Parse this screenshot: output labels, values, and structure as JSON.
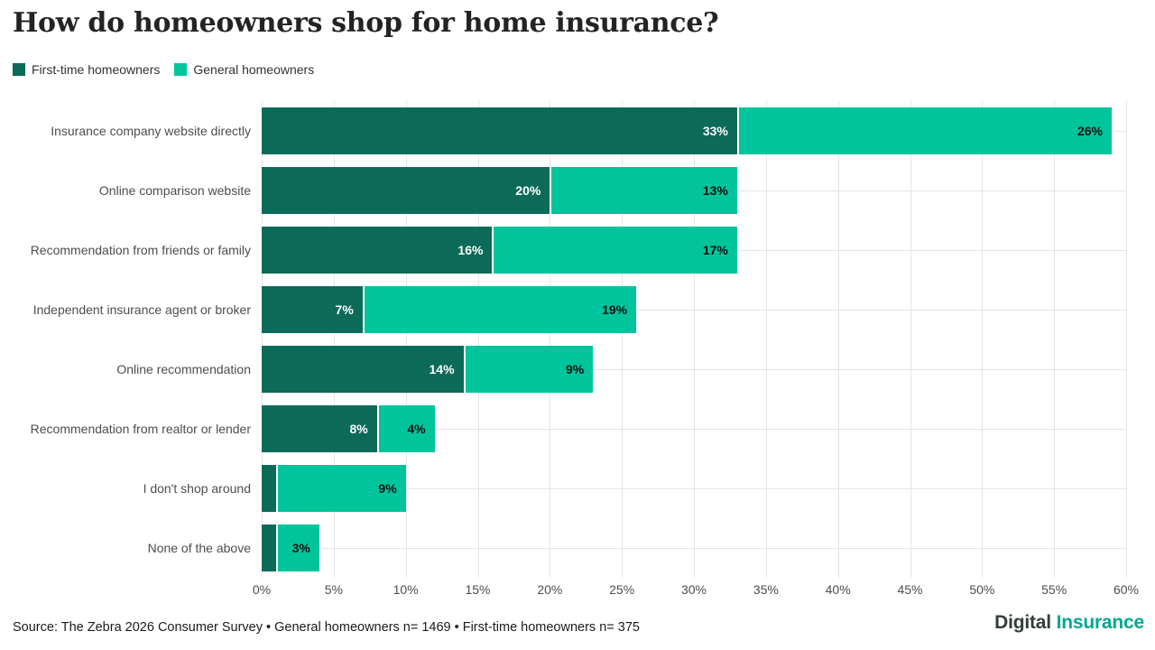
{
  "header": {
    "title": "How do homeowners shop for home insurance?"
  },
  "footer": {
    "source_text": "Source: The Zebra 2026 Consumer Survey • General homeowners n= 1469 • First-time homeowners n= 375"
  },
  "logo": {
    "part1": "Digital",
    "part2": "Insurance",
    "part1_color": "#333d3c",
    "part2_color": "#00a88e"
  },
  "chart_data": {
    "type": "bar",
    "orientation": "horizontal",
    "stacked": true,
    "title": "How do homeowners shop for home insurance?",
    "categories": [
      "Insurance company website directly",
      "Online comparison website",
      "Recommendation from friends or family",
      "Independent insurance agent or broker",
      "Online recommendation",
      "Recommendation from realtor or lender",
      "I don't shop around",
      "None of the above"
    ],
    "series": [
      {
        "name": "First-time homeowners",
        "color": "#0b6b58",
        "values": [
          33,
          20,
          16,
          7,
          14,
          8,
          1,
          1
        ],
        "labels": [
          "33%",
          "20%",
          "16%",
          "7%",
          "14%",
          "8%",
          "",
          ""
        ]
      },
      {
        "name": "General homeowners",
        "color": "#00c59c",
        "values": [
          26,
          13,
          17,
          19,
          9,
          4,
          9,
          3
        ],
        "labels": [
          "26%",
          "13%",
          "17%",
          "19%",
          "9%",
          "4%",
          "9%",
          "3%"
        ]
      }
    ],
    "x_ticks": [
      "0%",
      "5%",
      "10%",
      "15%",
      "20%",
      "25%",
      "30%",
      "35%",
      "40%",
      "45%",
      "50%",
      "55%",
      "60%"
    ],
    "xlim": [
      0,
      60
    ],
    "grid": "vertical ticks + horizontal row centerlines",
    "legend_position": "top-left",
    "background": "#ffffff"
  }
}
